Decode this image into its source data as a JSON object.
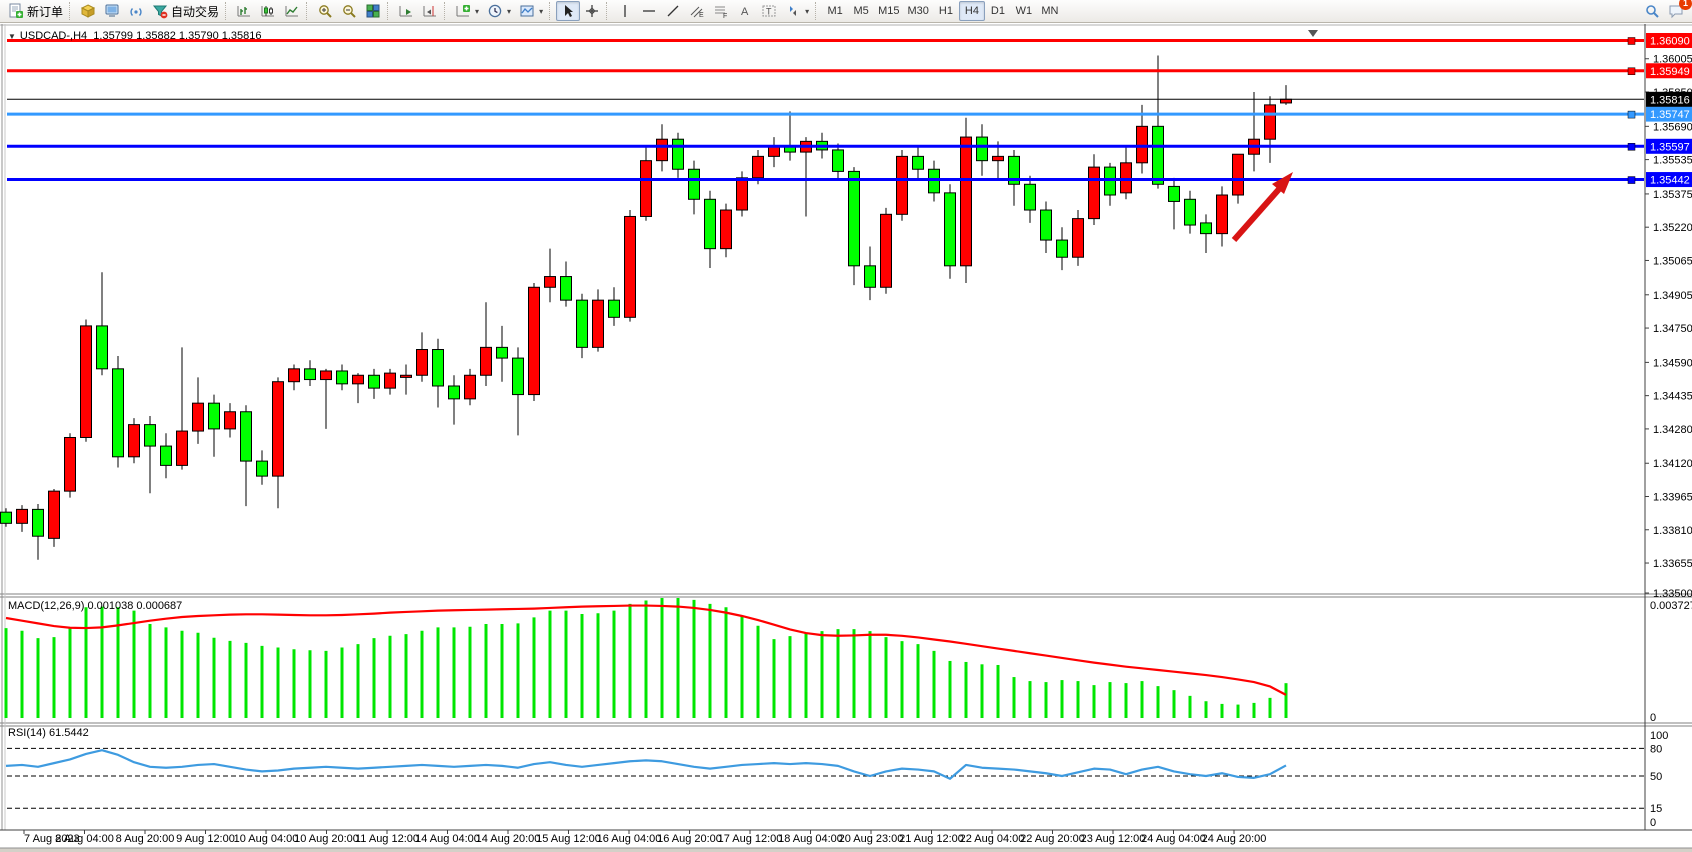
{
  "toolbar": {
    "groups": [
      {
        "buttons": [
          {
            "icon": "new-order-icon",
            "label": "新订单",
            "tip": "New Order"
          }
        ]
      },
      {
        "buttons": [
          {
            "icon": "cube-icon"
          },
          {
            "icon": "terminal-icon"
          },
          {
            "icon": "signals-icon"
          },
          {
            "icon": "autotrade-icon",
            "label": "自动交易",
            "tip": "AutoTrading"
          }
        ]
      },
      {
        "buttons": [
          {
            "icon": "bar-chart-icon"
          },
          {
            "icon": "candle-chart-icon"
          },
          {
            "icon": "line-chart-icon"
          }
        ]
      },
      {
        "buttons": [
          {
            "icon": "zoom-in-icon"
          },
          {
            "icon": "zoom-out-icon"
          },
          {
            "icon": "tile-windows-icon"
          }
        ]
      },
      {
        "buttons": [
          {
            "icon": "auto-scroll-icon"
          },
          {
            "icon": "chart-shift-icon"
          }
        ]
      },
      {
        "buttons": [
          {
            "icon": "indicators-icon",
            "caret": true
          },
          {
            "icon": "periods-icon",
            "caret": true
          },
          {
            "icon": "templates-icon",
            "caret": true
          }
        ]
      },
      {
        "buttons": [
          {
            "icon": "cursor-icon",
            "active": true
          },
          {
            "icon": "crosshair-icon"
          }
        ]
      },
      {
        "buttons": [
          {
            "icon": "vline-icon"
          },
          {
            "icon": "hline-icon"
          },
          {
            "icon": "trendline-icon"
          },
          {
            "icon": "channel-icon"
          },
          {
            "icon": "fibonacci-icon"
          },
          {
            "icon": "text-icon"
          },
          {
            "icon": "text-label-icon"
          },
          {
            "icon": "arrows-icon",
            "caret": true
          }
        ]
      }
    ],
    "timeframes": [
      "M1",
      "M5",
      "M15",
      "M30",
      "H1",
      "H4",
      "D1",
      "W1",
      "MN"
    ],
    "active_timeframe": "H4",
    "right_icons": [
      {
        "icon": "search-icon"
      },
      {
        "icon": "chat-icon",
        "badge": "1"
      }
    ]
  },
  "chart": {
    "title_symbol": "USDCAD-,H4",
    "title_ohlc": "1.35799 1.35882 1.35790 1.35816",
    "dropdown_glyph": "▼",
    "macd_label": "MACD(12,26,9) 0.001038 0.000687",
    "rsi_label": "RSI(14) 61.5442"
  },
  "chart_data": {
    "type": "candlestick",
    "symbol": "USDCAD",
    "timeframe": "H4",
    "current_bar": {
      "open": 1.35799,
      "high": 1.35882,
      "low": 1.3579,
      "close": 1.35816
    },
    "convention": "red = bullish (up), green = bearish (down)",
    "colors": {
      "up_body": "#FF0000",
      "down_body": "#00FF00",
      "wick": "#000000",
      "macd_histogram": "#00E600",
      "macd_signal": "#FF0000",
      "rsi_line": "#3E9BE0",
      "resistance_line": "#FF0000",
      "support_light": "#3399FF",
      "support_dark": "#0000FF",
      "current_price": "#000000",
      "arrow": "#D81414"
    },
    "price_axis_ticks": [
      "1.36005",
      "1.35850",
      "1.35690",
      "1.35535",
      "1.35375",
      "1.35220",
      "1.35065",
      "1.34905",
      "1.34750",
      "1.34590",
      "1.34435",
      "1.34280",
      "1.34120",
      "1.33965",
      "1.33810",
      "1.33655",
      "1.33500"
    ],
    "price_range": {
      "top": 1.36148,
      "bottom": 1.335
    },
    "hlines": [
      {
        "price": 1.3609,
        "label": "1.36090",
        "color": "#FF0000",
        "width": 3
      },
      {
        "price": 1.35949,
        "label": "1.35949",
        "color": "#FF0000",
        "width": 3
      },
      {
        "price": 1.35747,
        "label": "1.35747",
        "color": "#3399FF",
        "width": 3
      },
      {
        "price": 1.35597,
        "label": "1.35597",
        "color": "#0000FF",
        "width": 3
      },
      {
        "price": 1.35442,
        "label": "1.35442",
        "color": "#0000FF",
        "width": 3
      }
    ],
    "current_price_line": {
      "price": 1.35816,
      "label": "1.35816",
      "color": "#000000"
    },
    "candles": [
      [
        1.33892,
        1.3391,
        1.33824,
        1.3384
      ],
      [
        1.3384,
        1.33925,
        1.338,
        1.33905
      ],
      [
        1.33905,
        1.3393,
        1.3367,
        1.3378
      ],
      [
        1.3377,
        1.34,
        1.3373,
        1.3399
      ],
      [
        1.3399,
        1.3426,
        1.3396,
        1.3424
      ],
      [
        1.3424,
        1.3479,
        1.3422,
        1.3476
      ],
      [
        1.3476,
        1.3501,
        1.3453,
        1.3456
      ],
      [
        1.3456,
        1.3462,
        1.341,
        1.3415
      ],
      [
        1.3415,
        1.3433,
        1.3412,
        1.343
      ],
      [
        1.343,
        1.3434,
        1.3398,
        1.342
      ],
      [
        1.342,
        1.3426,
        1.3405,
        1.3411
      ],
      [
        1.3411,
        1.3466,
        1.3409,
        1.3427
      ],
      [
        1.3427,
        1.3452,
        1.3421,
        1.344
      ],
      [
        1.344,
        1.3444,
        1.3415,
        1.3428
      ],
      [
        1.3428,
        1.344,
        1.3424,
        1.3436
      ],
      [
        1.3436,
        1.3439,
        1.3392,
        1.3413
      ],
      [
        1.3413,
        1.3418,
        1.3402,
        1.3406
      ],
      [
        1.3406,
        1.3452,
        1.3391,
        1.345
      ],
      [
        1.345,
        1.3458,
        1.3446,
        1.3456
      ],
      [
        1.3456,
        1.346,
        1.3448,
        1.3451
      ],
      [
        1.3451,
        1.3456,
        1.3428,
        1.3455
      ],
      [
        1.3455,
        1.3458,
        1.3446,
        1.3449
      ],
      [
        1.3449,
        1.3454,
        1.344,
        1.3453
      ],
      [
        1.3453,
        1.3456,
        1.3442,
        1.3447
      ],
      [
        1.3447,
        1.3456,
        1.3444,
        1.3454
      ],
      [
        1.3452,
        1.3458,
        1.3444,
        1.3453
      ],
      [
        1.3453,
        1.3473,
        1.345,
        1.3465
      ],
      [
        1.3465,
        1.347,
        1.3438,
        1.3448
      ],
      [
        1.3448,
        1.3453,
        1.343,
        1.3442
      ],
      [
        1.3442,
        1.3456,
        1.3439,
        1.3453
      ],
      [
        1.3453,
        1.3487,
        1.3448,
        1.3466
      ],
      [
        1.3466,
        1.3476,
        1.345,
        1.3461
      ],
      [
        1.3461,
        1.3466,
        1.3425,
        1.3444
      ],
      [
        1.3444,
        1.3496,
        1.3441,
        1.3494
      ],
      [
        1.3494,
        1.3512,
        1.3487,
        1.3499
      ],
      [
        1.3499,
        1.3506,
        1.3485,
        1.3488
      ],
      [
        1.3488,
        1.3491,
        1.3461,
        1.3466
      ],
      [
        1.3466,
        1.3493,
        1.3464,
        1.3488
      ],
      [
        1.3488,
        1.3494,
        1.3476,
        1.348
      ],
      [
        1.348,
        1.353,
        1.3478,
        1.3527
      ],
      [
        1.3527,
        1.356,
        1.3525,
        1.3553
      ],
      [
        1.3553,
        1.357,
        1.3548,
        1.3563
      ],
      [
        1.3563,
        1.3566,
        1.3545,
        1.3549
      ],
      [
        1.3549,
        1.3553,
        1.3528,
        1.3535
      ],
      [
        1.3535,
        1.3539,
        1.3503,
        1.3512
      ],
      [
        1.3512,
        1.3533,
        1.3508,
        1.353
      ],
      [
        1.353,
        1.3548,
        1.3527,
        1.3545
      ],
      [
        1.3545,
        1.3558,
        1.3542,
        1.3555
      ],
      [
        1.3555,
        1.3564,
        1.355,
        1.356
      ],
      [
        1.356,
        1.3576,
        1.3553,
        1.3557
      ],
      [
        1.3557,
        1.3564,
        1.3527,
        1.3562
      ],
      [
        1.3562,
        1.3566,
        1.3554,
        1.3558
      ],
      [
        1.3558,
        1.3561,
        1.3544,
        1.3548
      ],
      [
        1.3548,
        1.355,
        1.3495,
        1.3504
      ],
      [
        1.3504,
        1.3513,
        1.3488,
        1.3494
      ],
      [
        1.3494,
        1.3531,
        1.3491,
        1.3528
      ],
      [
        1.3528,
        1.3558,
        1.3525,
        1.3555
      ],
      [
        1.3555,
        1.356,
        1.3544,
        1.3549
      ],
      [
        1.3549,
        1.3553,
        1.3534,
        1.3538
      ],
      [
        1.3538,
        1.3542,
        1.3498,
        1.3504
      ],
      [
        1.3504,
        1.3573,
        1.3496,
        1.3564
      ],
      [
        1.3564,
        1.357,
        1.3546,
        1.3553
      ],
      [
        1.3553,
        1.3562,
        1.3544,
        1.3555
      ],
      [
        1.3555,
        1.3558,
        1.3532,
        1.3542
      ],
      [
        1.3542,
        1.3546,
        1.3524,
        1.353
      ],
      [
        1.353,
        1.3534,
        1.351,
        1.3516
      ],
      [
        1.3516,
        1.3522,
        1.3502,
        1.3508
      ],
      [
        1.3508,
        1.353,
        1.3504,
        1.3526
      ],
      [
        1.3526,
        1.3556,
        1.3523,
        1.355
      ],
      [
        1.355,
        1.3552,
        1.3532,
        1.3537
      ],
      [
        1.3538,
        1.356,
        1.3535,
        1.3552
      ],
      [
        1.3552,
        1.3579,
        1.3547,
        1.3569
      ],
      [
        1.3569,
        1.3602,
        1.354,
        1.3542
      ],
      [
        1.3541,
        1.3545,
        1.3521,
        1.3534
      ],
      [
        1.3535,
        1.3539,
        1.3519,
        1.3523
      ],
      [
        1.3524,
        1.3528,
        1.351,
        1.3519
      ],
      [
        1.3519,
        1.3541,
        1.3513,
        1.3537
      ],
      [
        1.3537,
        1.3556,
        1.3533,
        1.3556
      ],
      [
        1.3556,
        1.3585,
        1.3548,
        1.3563
      ],
      [
        1.3563,
        1.3583,
        1.3552,
        1.3579
      ],
      [
        1.35799,
        1.35882,
        1.3579,
        1.35816
      ]
    ],
    "time_labels": [
      "7 Aug 2023",
      "8 Aug 04:00",
      "8 Aug 20:00",
      "9 Aug 12:00",
      "10 Aug 04:00",
      "10 Aug 20:00",
      "11 Aug 12:00",
      "14 Aug 04:00",
      "14 Aug 20:00",
      "15 Aug 12:00",
      "16 Aug 04:00",
      "16 Aug 20:00",
      "17 Aug 12:00",
      "18 Aug 04:00",
      "20 Aug 23:00",
      "21 Aug 12:00",
      "22 Aug 04:00",
      "22 Aug 20:00",
      "23 Aug 12:00",
      "24 Aug 04:00",
      "24 Aug 20:00"
    ],
    "indicators": {
      "macd": {
        "name": "MACD",
        "params": "12,26,9",
        "current_main": 0.001038,
        "current_signal": 0.000687,
        "axis_max_label": "0.003727",
        "axis_min_label": "0",
        "histogram_x1e4": [
          26.8,
          26.0,
          23.8,
          24.1,
          26.8,
          33.0,
          33.2,
          33.0,
          32.0,
          28.0,
          27.0,
          26.0,
          25.4,
          23.9,
          23.0,
          22.4,
          21.5,
          21.0,
          20.5,
          20.2,
          20.0,
          21.0,
          22.0,
          23.8,
          24.5,
          25.0,
          26.0,
          27.0,
          27.0,
          27.2,
          28.0,
          28.0,
          28.2,
          30.0,
          32.0,
          32.0,
          31.0,
          31.2,
          32.0,
          34.0,
          35.0,
          36.0,
          36.4,
          35.2,
          34.0,
          33.0,
          30.5,
          27.5,
          23.5,
          24.4,
          25.3,
          25.9,
          26.5,
          26.5,
          25.9,
          24.1,
          22.9,
          22.0,
          20.0,
          17.0,
          16.7,
          16.0,
          15.8,
          12.2,
          11.0,
          10.7,
          11.3,
          11.0,
          9.8,
          10.7,
          10.4,
          11.0,
          9.5,
          8.3,
          6.6,
          5.0,
          4.2,
          4.0,
          4.5,
          6.0,
          10.38
        ],
        "signal_x1e4": [
          29.8,
          29.0,
          28.2,
          27.4,
          26.9,
          26.8,
          27.0,
          27.6,
          28.3,
          29.0,
          29.6,
          30.1,
          30.4,
          30.6,
          30.8,
          30.9,
          30.9,
          30.8,
          30.7,
          30.6,
          30.6,
          30.7,
          30.9,
          31.1,
          31.4,
          31.6,
          31.8,
          32.0,
          32.1,
          32.2,
          32.3,
          32.4,
          32.5,
          32.6,
          32.8,
          33.0,
          33.2,
          33.3,
          33.4,
          33.5,
          33.5,
          33.4,
          33.2,
          32.8,
          32.2,
          31.4,
          30.4,
          29.2,
          27.8,
          26.4,
          25.3,
          24.7,
          24.5,
          24.6,
          24.8,
          24.8,
          24.5,
          24.0,
          23.4,
          22.8,
          22.1,
          21.4,
          20.7,
          20.0,
          19.3,
          18.6,
          17.9,
          17.2,
          16.5,
          15.9,
          15.3,
          14.8,
          14.3,
          13.8,
          13.3,
          12.8,
          12.2,
          11.5,
          10.7,
          9.4,
          6.9
        ]
      },
      "rsi": {
        "name": "RSI",
        "params": "14",
        "current": 61.5442,
        "axis_labels": [
          "100",
          "80",
          "50",
          "15",
          "0"
        ],
        "levels_dashed": [
          80,
          50,
          15
        ],
        "values": [
          61,
          62,
          60,
          64,
          68,
          74,
          78,
          73,
          65,
          60,
          59,
          60,
          62,
          63,
          60,
          57,
          55,
          56,
          58,
          59,
          60,
          59,
          58,
          59,
          60,
          61,
          62,
          61,
          60,
          61,
          62,
          61,
          59,
          63,
          65,
          62,
          60,
          62,
          64,
          66,
          67,
          66,
          63,
          60,
          58,
          60,
          62,
          63,
          64,
          63,
          64,
          63,
          61,
          55,
          50,
          55,
          58,
          57,
          55,
          47,
          62,
          59,
          58,
          57,
          55,
          53,
          50,
          54,
          58,
          57,
          52,
          57,
          60,
          55,
          52,
          50,
          53,
          49,
          48,
          52,
          61.5
        ]
      }
    },
    "annotation_arrow": {
      "color": "#D81414",
      "direction": "up-right"
    }
  }
}
